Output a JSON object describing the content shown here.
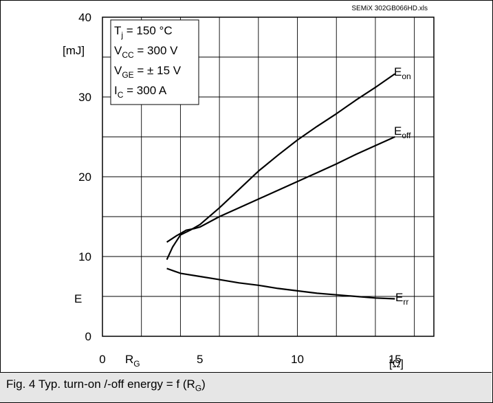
{
  "chart_data": {
    "type": "line",
    "source_tag": "SEMiX 302GB066HD.xls",
    "caption_text": "Fig. 4 Typ. turn-on /-off energy = f (R",
    "caption_sub": "G",
    "caption_end": ")",
    "y_unit": "[mJ]",
    "y_axis_symbol": "E",
    "x_axis_symbol": "R",
    "x_axis_symbol_sub": "G",
    "x_unit": "[Ω]",
    "xlim": [
      0,
      17
    ],
    "ylim": [
      0,
      40
    ],
    "x_ticks": [
      "0",
      "5",
      "10",
      "15"
    ],
    "y_ticks": [
      "0",
      "10",
      "20",
      "30",
      "40"
    ],
    "grid": true,
    "conditions": [
      {
        "sym": "T",
        "sub": "j",
        "rest": " = 150 °C"
      },
      {
        "sym": "V",
        "sub": "CC",
        "rest": " = 300 V"
      },
      {
        "sym": "V",
        "sub": "GE",
        "rest": " = ± 15 V"
      },
      {
        "sym": "I",
        "sub": "C",
        "rest": " = 300 A"
      }
    ],
    "series": [
      {
        "label_main": "E",
        "label_sub": "on",
        "x": [
          3.3,
          3.6,
          4.0,
          4.5,
          5.0,
          6.0,
          7.0,
          8.0,
          9.0,
          10.0,
          11.0,
          12.0,
          13.0,
          14.0,
          15.0
        ],
        "y": [
          9.6,
          11.2,
          12.7,
          13.3,
          14.0,
          16.1,
          18.4,
          20.7,
          22.7,
          24.6,
          26.3,
          27.9,
          29.6,
          31.2,
          32.9
        ]
      },
      {
        "label_main": "E",
        "label_sub": "off",
        "x": [
          3.3,
          3.8,
          4.3,
          4.7,
          5.0,
          6.0,
          7.0,
          8.0,
          9.0,
          10.0,
          11.0,
          12.0,
          13.0,
          14.0,
          15.0
        ],
        "y": [
          11.8,
          12.6,
          13.3,
          13.5,
          13.7,
          15.0,
          16.1,
          17.2,
          18.3,
          19.4,
          20.5,
          21.6,
          22.8,
          23.9,
          25.0
        ]
      },
      {
        "label_main": "E",
        "label_sub": "rr",
        "x": [
          3.3,
          4.0,
          5.0,
          6.0,
          7.0,
          8.0,
          9.0,
          10.0,
          11.0,
          12.0,
          13.0,
          14.0,
          15.0
        ],
        "y": [
          8.5,
          7.9,
          7.5,
          7.1,
          6.7,
          6.4,
          6.0,
          5.7,
          5.4,
          5.2,
          5.0,
          4.8,
          4.7
        ]
      }
    ]
  }
}
